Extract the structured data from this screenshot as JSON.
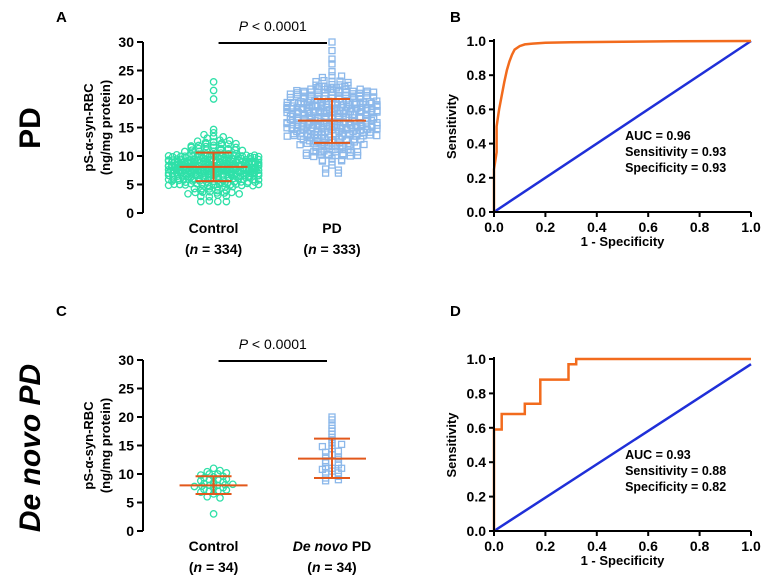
{
  "rows": [
    {
      "label": "PD",
      "italic": false
    },
    {
      "label": "De novo PD",
      "italic": true
    }
  ],
  "panel_letters": [
    "A",
    "B",
    "C",
    "D"
  ],
  "colors": {
    "control": "#2FE0A8",
    "pd": "#8CB8EA",
    "mean_sd": "#E2581B",
    "roc": "#F26B1D",
    "diagonal": "#1F2FD8",
    "axis": "#000000"
  },
  "chart_data": [
    {
      "panel": "A",
      "type": "scatter",
      "ylabel_line1": "pS-α-syn-RBC",
      "ylabel_line2": "(ng/mg protein)",
      "ylim": [
        0,
        30
      ],
      "yticks": [
        "0",
        "5",
        "10",
        "15",
        "20",
        "25",
        "30"
      ],
      "categories": [
        {
          "name": "Control",
          "italic_name": false,
          "n_label": "(n = 334)",
          "n": 334,
          "mean": 8.1,
          "sd_low": 5.6,
          "sd_high": 10.6,
          "min": 2.0,
          "max": 23.0
        },
        {
          "name": "PD",
          "italic_name": false,
          "n_label": "(n = 333)",
          "n": 333,
          "mean": 16.2,
          "sd_low": 12.3,
          "sd_high": 20.0,
          "min": 7.0,
          "max": 30.0
        }
      ],
      "significance": "P < 0.0001"
    },
    {
      "panel": "B",
      "type": "line",
      "xlabel": "1 - Specificity",
      "ylabel": "Sensitivity",
      "xlim": [
        0,
        1
      ],
      "ylim": [
        0,
        1
      ],
      "xticks": [
        "0.0",
        "0.2",
        "0.4",
        "0.6",
        "0.8",
        "1.0"
      ],
      "yticks": [
        "0.0",
        "0.2",
        "0.4",
        "0.6",
        "0.8",
        "1.0"
      ],
      "roc_x": [
        0,
        0,
        0.01,
        0.01,
        0.02,
        0.03,
        0.04,
        0.05,
        0.06,
        0.07,
        0.08,
        0.1,
        0.12,
        0.15,
        0.2,
        0.3,
        0.5,
        0.7,
        1.0
      ],
      "roc_y": [
        0,
        0.25,
        0.35,
        0.5,
        0.6,
        0.68,
        0.76,
        0.83,
        0.88,
        0.92,
        0.95,
        0.97,
        0.98,
        0.985,
        0.99,
        0.993,
        0.996,
        0.998,
        1.0
      ],
      "diagonal": [
        [
          0,
          0
        ],
        [
          1,
          1
        ]
      ],
      "annotation": [
        "AUC = 0.96",
        "Sensitivity = 0.93",
        "Specificity = 0.93"
      ]
    },
    {
      "panel": "C",
      "type": "scatter",
      "ylabel_line1": "pS-α-syn-RBC",
      "ylabel_line2": "(ng/mg protein)",
      "ylim": [
        0,
        30
      ],
      "yticks": [
        "0",
        "5",
        "10",
        "15",
        "20",
        "25",
        "30"
      ],
      "categories": [
        {
          "name": "Control",
          "italic_name": false,
          "n_label": "(n = 34)",
          "n": 34,
          "mean": 8.0,
          "sd_low": 6.5,
          "sd_high": 9.6,
          "values": [
            3.0,
            6.0,
            6.5,
            6.8,
            7.0,
            7.0,
            7.2,
            7.3,
            7.5,
            7.6,
            7.8,
            7.9,
            8.0,
            8.0,
            8.1,
            8.2,
            8.3,
            8.5,
            8.6,
            8.8,
            9.0,
            9.0,
            9.1,
            9.3,
            9.5,
            9.6,
            9.8,
            10.0,
            10.0,
            10.2,
            10.4,
            10.6,
            11.0,
            5.8
          ]
        },
        {
          "name": "De novo PD",
          "italic_name": true,
          "n_label": "(n = 34)",
          "n": 34,
          "mean": 12.7,
          "sd_low": 9.3,
          "sd_high": 16.2,
          "values": [
            8.8,
            9.0,
            9.3,
            9.6,
            10.0,
            10.2,
            10.5,
            10.8,
            11.0,
            11.0,
            11.3,
            11.6,
            12.0,
            12.0,
            12.3,
            12.6,
            13.0,
            13.0,
            13.4,
            13.8,
            14.0,
            14.4,
            14.8,
            15.0,
            15.2,
            15.6,
            16.0,
            16.4,
            17.0,
            17.5,
            18.0,
            18.6,
            19.5,
            20.0
          ]
        }
      ],
      "significance": "P < 0.0001"
    },
    {
      "panel": "D",
      "type": "line",
      "xlabel": "1 - Specificity",
      "ylabel": "Sensitivity",
      "xlim": [
        0,
        1
      ],
      "ylim": [
        0,
        1
      ],
      "xticks": [
        "0.0",
        "0.2",
        "0.4",
        "0.6",
        "0.8",
        "1.0"
      ],
      "yticks": [
        "0.0",
        "0.2",
        "0.4",
        "0.6",
        "0.8",
        "1.0"
      ],
      "roc_x": [
        0,
        0,
        0.03,
        0.03,
        0.09,
        0.09,
        0.12,
        0.12,
        0.18,
        0.18,
        0.29,
        0.29,
        0.32,
        0.32,
        1.0
      ],
      "roc_y": [
        0,
        0.59,
        0.59,
        0.68,
        0.68,
        0.68,
        0.68,
        0.74,
        0.74,
        0.88,
        0.88,
        0.97,
        0.97,
        1.0,
        1.0
      ],
      "diagonal": [
        [
          0,
          0
        ],
        [
          1,
          0.97
        ]
      ],
      "annotation": [
        "AUC = 0.93",
        "Sensitivity = 0.88",
        "Specificity = 0.82"
      ]
    }
  ]
}
